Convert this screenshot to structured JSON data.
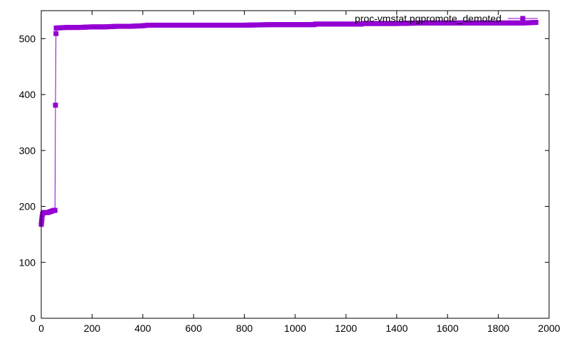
{
  "chart_data": {
    "type": "line",
    "title": "",
    "xlabel": "",
    "ylabel": "",
    "xlim": [
      0,
      2000
    ],
    "ylim": [
      0,
      550
    ],
    "xticks": [
      0,
      200,
      400,
      600,
      800,
      1000,
      1200,
      1400,
      1600,
      1800,
      2000
    ],
    "yticks": [
      0,
      100,
      200,
      300,
      400,
      500
    ],
    "xtick_labels": [
      "0",
      "200",
      "400",
      "600",
      "800",
      "1000",
      "1200",
      "1400",
      "1600",
      "1800",
      "2000"
    ],
    "ytick_labels": [
      "0",
      "100",
      "200",
      "300",
      "400",
      "500"
    ],
    "grid": false,
    "legend_position": "top-right",
    "series": [
      {
        "name": "proc-vmstat.pgpromote_demoted",
        "color": "#9400d3",
        "marker": "square",
        "points": [
          [
            0,
            168
          ],
          [
            1,
            172
          ],
          [
            2,
            176
          ],
          [
            3,
            180
          ],
          [
            5,
            186
          ],
          [
            8,
            189
          ],
          [
            12,
            189
          ],
          [
            18,
            189
          ],
          [
            25,
            189
          ],
          [
            32,
            190
          ],
          [
            38,
            191
          ],
          [
            44,
            192
          ],
          [
            50,
            193
          ],
          [
            54,
            193
          ],
          [
            56,
            381
          ],
          [
            58,
            509
          ],
          [
            59,
            519
          ],
          [
            100,
            520
          ],
          [
            150,
            520
          ],
          [
            200,
            521
          ],
          [
            250,
            521
          ],
          [
            300,
            522
          ],
          [
            350,
            522
          ],
          [
            400,
            523
          ],
          [
            420,
            524
          ],
          [
            500,
            524
          ],
          [
            600,
            524
          ],
          [
            700,
            524
          ],
          [
            800,
            524
          ],
          [
            900,
            525
          ],
          [
            1000,
            525
          ],
          [
            1075,
            525
          ],
          [
            1080,
            526
          ],
          [
            1200,
            526
          ],
          [
            1260,
            526
          ],
          [
            1270,
            527
          ],
          [
            1400,
            527
          ],
          [
            1500,
            528
          ],
          [
            1600,
            528
          ],
          [
            1700,
            528
          ],
          [
            1800,
            528
          ],
          [
            1900,
            528
          ],
          [
            1948,
            529
          ]
        ]
      }
    ]
  }
}
